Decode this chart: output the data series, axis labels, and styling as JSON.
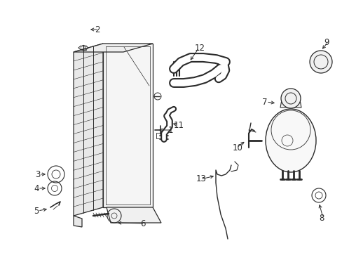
{
  "bg_color": "#ffffff",
  "line_color": "#2a2a2a",
  "fig_width": 4.89,
  "fig_height": 3.6,
  "dpi": 100,
  "label_fs": 8.5,
  "lw_main": 0.9,
  "lw_thin": 0.5,
  "lw_thick": 2.2
}
